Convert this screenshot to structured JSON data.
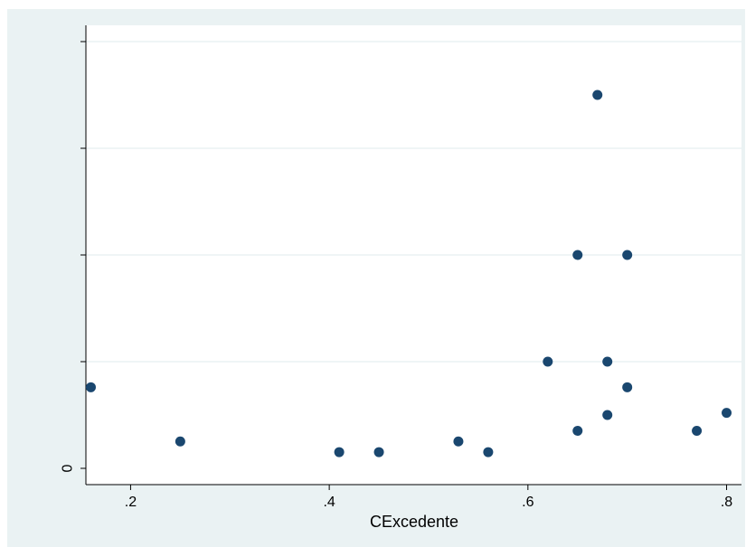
{
  "chart_data": {
    "type": "scatter",
    "title": "",
    "xlabel": "CExcedente",
    "ylabel": "",
    "xlim": [
      0.155,
      0.815
    ],
    "ylim": [
      0,
      1
    ],
    "x_ticks": [
      {
        "value": 0.2,
        "label": ".2"
      },
      {
        "value": 0.4,
        "label": ".4"
      },
      {
        "value": 0.6,
        "label": ".6"
      },
      {
        "value": 0.8,
        "label": ".8"
      }
    ],
    "y_ticks": [
      {
        "value": 0,
        "label": "0"
      },
      {
        "value": 0.25,
        "label": ""
      },
      {
        "value": 0.5,
        "label": ""
      },
      {
        "value": 0.75,
        "label": ""
      },
      {
        "value": 1.0,
        "label": ""
      }
    ],
    "grid": true,
    "legend": "none",
    "points": [
      {
        "x": 0.16,
        "y": 0.19
      },
      {
        "x": 0.25,
        "y": 0.063
      },
      {
        "x": 0.41,
        "y": 0.038
      },
      {
        "x": 0.45,
        "y": 0.038
      },
      {
        "x": 0.53,
        "y": 0.063
      },
      {
        "x": 0.56,
        "y": 0.038
      },
      {
        "x": 0.62,
        "y": 0.25
      },
      {
        "x": 0.65,
        "y": 0.088
      },
      {
        "x": 0.65,
        "y": 0.5
      },
      {
        "x": 0.67,
        "y": 0.875
      },
      {
        "x": 0.68,
        "y": 0.25
      },
      {
        "x": 0.68,
        "y": 0.125
      },
      {
        "x": 0.7,
        "y": 0.5
      },
      {
        "x": 0.7,
        "y": 0.19
      },
      {
        "x": 0.77,
        "y": 0.088
      },
      {
        "x": 0.8,
        "y": 0.13
      }
    ]
  },
  "colors": {
    "outer_background": "#eaf2f3",
    "plot_background": "#ffffff",
    "grid": "#eaf2f3",
    "axis": "#000000",
    "marker": "#1a476f",
    "text": "#000000"
  }
}
